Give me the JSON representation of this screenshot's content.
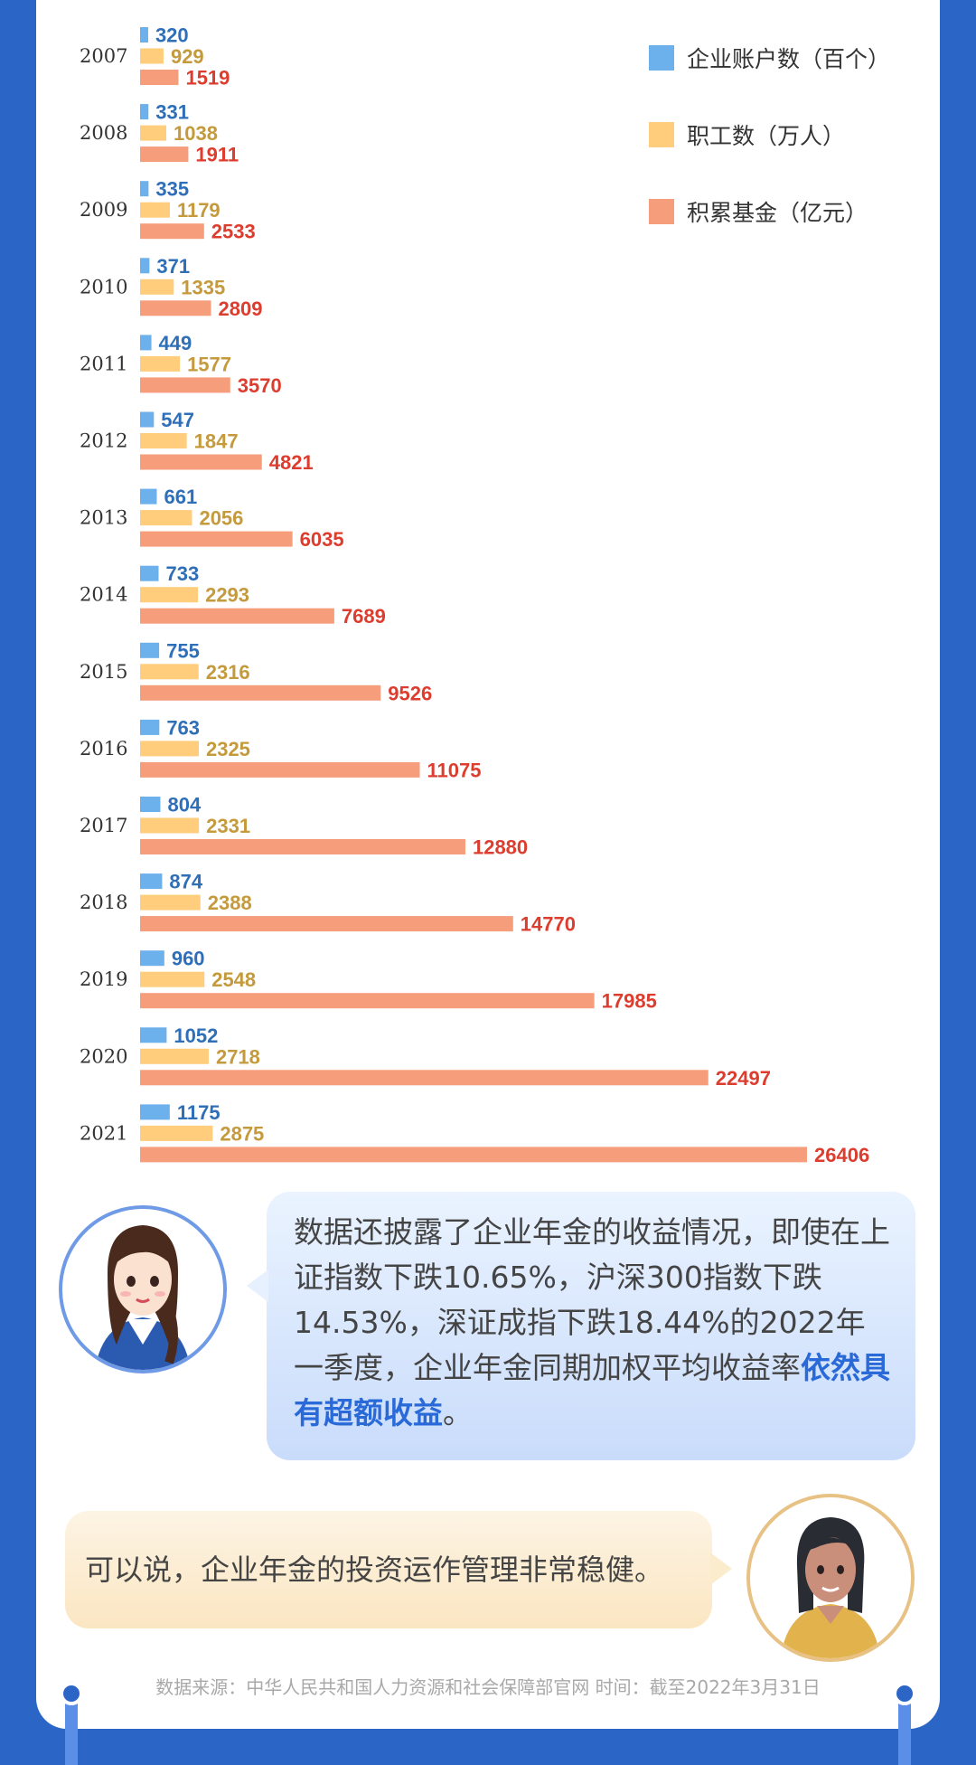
{
  "chart_data": {
    "type": "bar",
    "orientation": "horizontal",
    "categories": [
      "2007",
      "2008",
      "2009",
      "2010",
      "2011",
      "2012",
      "2013",
      "2014",
      "2015",
      "2016",
      "2017",
      "2018",
      "2019",
      "2020",
      "2021"
    ],
    "series": [
      {
        "name": "企业账户数（百个）",
        "color": "#6cb0ec",
        "label_color": "#2f6fb8",
        "values": [
          320,
          331,
          335,
          371,
          449,
          547,
          661,
          733,
          755,
          763,
          804,
          874,
          960,
          1052,
          1175
        ]
      },
      {
        "name": "职工数（万人）",
        "color": "#ffcd7b",
        "label_color": "#c49a3c",
        "values": [
          929,
          1038,
          1179,
          1335,
          1577,
          1847,
          2056,
          2293,
          2316,
          2325,
          2331,
          2388,
          2548,
          2718,
          2875
        ]
      },
      {
        "name": "积累基金（亿元）",
        "color": "#f69d7c",
        "label_color": "#dc3d2e",
        "values": [
          1519,
          1911,
          2533,
          2809,
          3570,
          4821,
          6035,
          7689,
          9526,
          11075,
          12880,
          14770,
          17985,
          22497,
          26406
        ]
      }
    ],
    "legend_position": "top-right",
    "grid": false
  },
  "bubbles": {
    "first_text": "数据还披露了企业年金的收益情况，即使在上证指数下跌10.65%，沪深300指数下跌14.53%，深证成指下跌18.44%的2022年一季度，企业年金同期加权平均收益率",
    "first_highlight": "依然具有超额收益",
    "first_end": "。",
    "second_text": "可以说，企业年金的投资运作管理非常稳健。"
  },
  "source": "数据来源：中华人民共和国人力资源和社会保障部官网 时间：截至2022年3月31日",
  "colors": {
    "background": "#2b66c7",
    "card": "#ffffff",
    "highlight": "#2a6ad8"
  }
}
